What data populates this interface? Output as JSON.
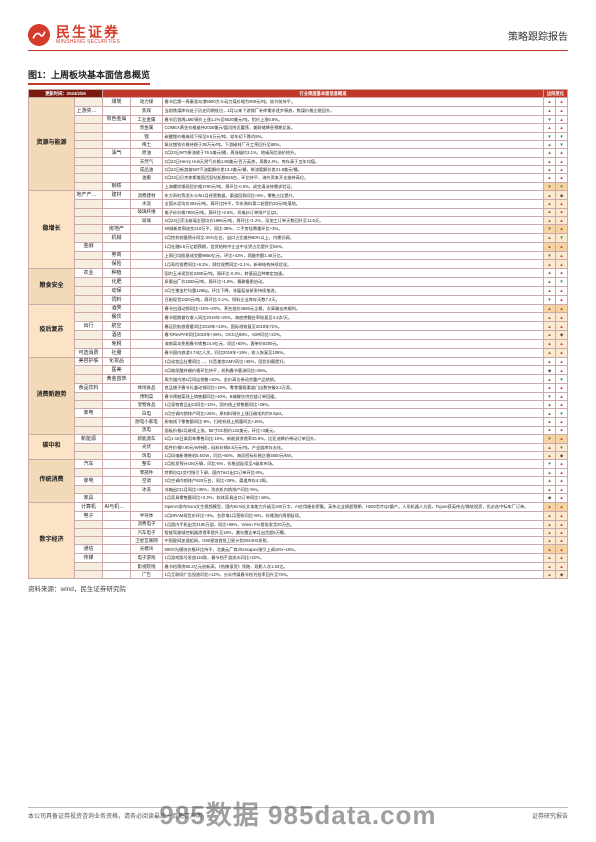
{
  "header": {
    "brand_cn": "民生证券",
    "brand_en": "MINSHENG SECURITIES",
    "report_type": "策略跟踪报告"
  },
  "figure": {
    "title": "图1：上周板块基本面信息概览",
    "update_label": "更新时间：2024/2/25",
    "col_header_mid": "行业周度基本面信息概览",
    "col_header_right": "边际变化"
  },
  "arrows": {
    "up": "▲",
    "down": "▼",
    "flat": "◆"
  },
  "colors": {
    "brand_red": "#d43b2a",
    "header_dark": "#7a1a10",
    "cat_bg": "#f2d9b8",
    "hl_bg": "#fce3c5",
    "grid": "#caa"
  },
  "categories": [
    {
      "name": "资源与能源",
      "highlight": false,
      "groups": [
        {
          "sub1": "",
          "sub2": "煤炭",
          "metric": "动力煤",
          "desc": "春节后第一周秦皇岛港5500大卡动力煤价格为900元/吨，较节前持平。",
          "ind": [
            "up",
            "up"
          ]
        },
        {
          "sub1": "上游资源品",
          "sub2": "",
          "metric": "焦煤",
          "desc": "当前焦煤库存处于历史同期低位，2月以来下游钢厂补库需求逐步释放，焦煤价格企稳回升。",
          "ind": [
            "up",
            "up"
          ]
        },
        {
          "sub1": "",
          "sub2": "有色金属",
          "metric": "工业金属",
          "desc": "春节后首周LME铜价上涨1.2%至8520美元/吨，铝价上涨0.8%。",
          "ind": [
            "down",
            "up"
          ],
          "num": "94"
        },
        {
          "sub1": "",
          "sub2": "",
          "metric": "贵金属",
          "desc": "COMEX黄金价格维持2030美元/盎司附近震荡，美联储降息预期反复。",
          "ind": [
            "up",
            "up"
          ],
          "num": "95"
        },
        {
          "sub1": "",
          "sub2": "",
          "metric": "锂",
          "desc": "碳酸锂价格继续下探至9.6万元/吨，较年初下跌约8%。",
          "ind": [
            "down",
            "down"
          ],
          "num": "锂"
        },
        {
          "sub1": "",
          "sub2": "",
          "metric": "稀土",
          "desc": "氧化镨钕价格持稳于38万元/吨，下游磁材厂开工率回升至65%。",
          "ind": [
            "up",
            "down"
          ],
          "num": "稀土"
        },
        {
          "sub1": "",
          "sub2": "油气",
          "metric": "原油",
          "desc": "2月23日WTI原油收于76.5美元/桶，周涨幅约3.1%，地缘风险溢价抬升。",
          "ind": [
            "up",
            "up"
          ]
        },
        {
          "sub1": "",
          "sub2": "",
          "metric": "天然气",
          "desc": "2月23日Henry Hub天然气价格1.60美元/百万英热，周跌2.4%，库存高于五年均值。",
          "ind": [
            "up",
            "up"
          ]
        },
        {
          "sub1": "",
          "sub2": "",
          "metric": "成品油",
          "desc": "2月23日新加坡92#汽油裂解价差13.2美元/桶，柴油裂解价差21.8美元/桶。",
          "ind": [
            "up",
            "up"
          ]
        },
        {
          "sub1": "",
          "sub2": "",
          "metric": "油服",
          "desc": "2月23日贝克休斯美国活跃钻机数626台，环比持平，海外资本开支维持高位。",
          "ind": [
            "up",
            "up"
          ]
        },
        {
          "sub1": "",
          "sub2": "钢铁",
          "metric": "",
          "desc": "上海螺纹钢现货价格3780元/吨，周环比-0.5%，成交清淡待需求验证。",
          "ind": [
            "down",
            "down"
          ],
          "hl": true
        }
      ]
    },
    {
      "name": "稳增长",
      "highlight": true,
      "groups": [
        {
          "sub1": "地产产业链",
          "sub2": "建材",
          "metric": "消费建材",
          "desc": "东方雨虹等龙头公布1月经营数据，渠道回款同比+5%，零售占比提升。",
          "ind": [
            "up",
            "flat"
          ]
        },
        {
          "sub1": "",
          "sub2": "",
          "metric": "水泥",
          "desc": "全国水泥均价383元/吨，周环比持平，华东熟料第二轮提价20元/吨落地。",
          "ind": [
            "up",
            "up"
          ]
        },
        {
          "sub1": "",
          "sub2": "",
          "metric": "玻璃纤维",
          "desc": "电子纱价格7800元/吨，周环比+2.6%，风电纱订单排产至Q2。",
          "ind": [
            "up",
            "up"
          ]
        },
        {
          "sub1": "",
          "sub2": "",
          "metric": "玻璃",
          "desc": "2月23日浮法玻璃全国均价1986元/吨，周环比+1.2%，深加工订单天数回升至11.5天。",
          "ind": [
            "up",
            "up"
          ]
        },
        {
          "sub1": "",
          "sub2": "房地产",
          "metric": "",
          "desc": "50城新房周成交210万平，同比-38%，二手房挂牌量环比+3%。",
          "ind": [
            "down",
            "up"
          ],
          "hl": true
        },
        {
          "sub1": "",
          "sub2": "机械",
          "metric": "",
          "desc": "2月挖机销量预计同比-25%左右，出口占比维持60%以上，内需仍弱。",
          "ind": [
            "up",
            "down"
          ]
        },
        {
          "sub1": "金融",
          "sub2": "",
          "metric": "",
          "desc": "1月社融6.5万亿超预期，信贷结构中企业中长贷占比提升至55%。",
          "ind": [
            "up",
            "up"
          ],
          "hl": true
        },
        {
          "sub1": "",
          "sub2": "券商",
          "metric": "",
          "desc": "上周日均股基成交额9850亿元，环比+42%，两融余额1.48万亿。",
          "ind": [
            "down",
            "up"
          ]
        },
        {
          "sub1": "",
          "sub2": "保险",
          "metric": "",
          "desc": "1月寿险保费同比+8.2%，财险保费同比+2.1%，新单结构持续优化。",
          "ind": [
            "up",
            "up"
          ]
        }
      ]
    },
    {
      "name": "粮食安全",
      "highlight": false,
      "groups": [
        {
          "sub1": "农业",
          "sub2": "种植",
          "metric": "",
          "desc": "国内玉米现货价2380元/吨，周环比-0.4%，转基因品种审定加速。",
          "ind": [
            "up",
            "up"
          ]
        },
        {
          "sub1": "",
          "sub2": "化肥",
          "metric": "",
          "desc": "尿素出厂价2280元/吨，周环比+1.8%，春耕备肥启动。",
          "ind": [
            "up",
            "down"
          ]
        },
        {
          "sub1": "",
          "sub2": "动保",
          "metric": "",
          "desc": "2月生猪出栏均重125kg，环比下降，非瘟疫苗研发持续推进。",
          "ind": [
            "up",
            "up"
          ]
        },
        {
          "sub1": "",
          "sub2": "饲料",
          "metric": "",
          "desc": "豆粕现货3420元/吨，周环比-2.1%，饲料企业库存天数7.2天。",
          "ind": [
            "down",
            "up"
          ]
        }
      ]
    },
    {
      "name": "疫后复苏",
      "highlight": true,
      "groups": [
        {
          "sub1": "",
          "sub2": "酒类",
          "metric": "",
          "desc": "春节白酒动销同比+15%~20%，茅台批价2680元企稳，次高端去库顺利。",
          "ind": [
            "up",
            "up"
          ],
          "hl": true
        },
        {
          "sub1": "",
          "sub2": "餐饮",
          "metric": "",
          "desc": "春节假期餐饮收入同比2019年+20%，海底捞翻台率恢复至4.2次/天。",
          "ind": [
            "up",
            "up"
          ]
        },
        {
          "sub1": "出行",
          "sub2": "航空",
          "metric": "",
          "desc": "春运民航旅客量同比2019年+15%，国际线恢复至2019年72%。",
          "ind": [
            "up",
            "up"
          ]
        },
        {
          "sub1": "",
          "sub2": "酒店",
          "metric": "",
          "desc": "春节RevPAR同比2019年+28%，OCC达68%，ADR同比+22%。",
          "ind": [
            "up",
            "flat"
          ]
        },
        {
          "sub1": "",
          "sub2": "免税",
          "metric": "",
          "desc": "海南离岛免税春节销售24.9亿元，同比+60%，客单价8200元。",
          "ind": [
            "up",
            "up"
          ]
        },
        {
          "sub1": "可选消费",
          "sub2": "社服",
          "metric": "",
          "desc": "春节国内旅游4.74亿人次，同比2019年+19%，收入恢复至108%。",
          "ind": [
            "up",
            "up"
          ]
        }
      ]
    },
    {
      "name": "消费新趋势",
      "highlight": false,
      "groups": [
        {
          "sub1": "美容护肤",
          "sub2": "化妆品",
          "metric": "",
          "desc": "1月化妆品社零同比…，抖音美妆GMV同比+35%，国货份额提升。",
          "ind": [
            "up",
            "up"
          ]
        },
        {
          "sub1": "",
          "sub2": "医美",
          "metric": "",
          "desc": "2月玻尿酸终端价格环比持平，机构春节客流同比+25%。",
          "ind": [
            "flat",
            "up"
          ]
        },
        {
          "sub1": "",
          "sub2": "黄金首饰",
          "metric": "",
          "desc": "周大福内地1月同店销售+20%，金价高位带动克重产品热销。",
          "ind": [
            "up",
            "down"
          ]
        },
        {
          "sub1": "食品饮料",
          "sub2": "",
          "metric": "休闲食品",
          "desc": "良品铺子春节礼盒动销同比+18%，零食量贩渠道门店数突破2.2万家。",
          "ind": [
            "up",
            "up"
          ]
        },
        {
          "sub1": "",
          "sub2": "",
          "metric": "预制菜",
          "desc": "春节预制菜线上销售额同比+40%，B端餐饮供应链订单回暖。",
          "ind": [
            "down",
            "up"
          ]
        },
        {
          "sub1": "",
          "sub2": "",
          "metric": "宠物食品",
          "desc": "1月宠物食品出口同比+12%，国内线上销售额同比+28%。",
          "ind": [
            "up",
            "up"
          ]
        },
        {
          "sub1": "家电",
          "sub2": "",
          "metric": "白电",
          "desc": "2月空调内销排产同比+25%，原材料铜价上涨压缩毛利约0.5pct。",
          "ind": [
            "up",
            "down"
          ]
        },
        {
          "sub1": "",
          "sub2": "",
          "metric": "厨电小家电",
          "desc": "厨电线下零售额同比-8%，扫地机线上销量同比+15%。",
          "ind": [
            "up",
            "up"
          ]
        },
        {
          "sub1": "",
          "sub2": "",
          "metric": "黑电",
          "desc": "面板价格2月继续上涨，55寸OC报价132美元，环比+3美元。",
          "ind": [
            "up",
            "up"
          ]
        }
      ]
    },
    {
      "name": "碳中和",
      "highlight": true,
      "groups": [
        {
          "sub1": "新能源",
          "sub2": "",
          "metric": "新能源车",
          "desc": "2月1-18日乘用车零售同比-15%，新能源渗透率35.8%，比亚迪降价带动订单回升。",
          "ind": [
            "down",
            "up"
          ],
          "hl": true
        },
        {
          "sub1": "",
          "sub2": "",
          "metric": "光伏",
          "desc": "组件价格0.90元/W持稳，硅料价格6.8万元/吨，产业链库存去化。",
          "ind": [
            "up",
            "down"
          ]
        },
        {
          "sub1": "",
          "sub2": "",
          "metric": "风电",
          "desc": "1月风电新增装机5.5GW，同比+60%，海风招标价格企稳3500元/kW。",
          "ind": [
            "up",
            "flat"
          ]
        }
      ]
    },
    {
      "name": "传统消费",
      "highlight": false,
      "groups": [
        {
          "sub1": "汽车",
          "sub2": "",
          "metric": "整车",
          "desc": "2月批发预计150万辆，同比-5%，价格战延续至A级车市场。",
          "ind": [
            "down",
            "up"
          ]
        },
        {
          "sub1": "",
          "sub2": "",
          "metric": "零部件",
          "desc": "特斯拉Q1交付指引下调，国内Tier1出口订单环比-8%。",
          "ind": [
            "up",
            "up"
          ]
        },
        {
          "sub1": "家电",
          "sub2": "",
          "metric": "空调",
          "desc": "2月空调内销排产920万台，同比+28%，渠道库存4.2周。",
          "ind": [
            "up",
            "up"
          ]
        },
        {
          "sub1": "",
          "sub2": "",
          "metric": "冰洗",
          "desc": "冰箱出口1月同比+35%，洗衣机内销排产同比+5%。",
          "ind": [
            "up",
            "up"
          ]
        },
        {
          "sub1": "家具",
          "sub2": "",
          "metric": "",
          "desc": "1月家具零售额同比+2.3%，软体家具出口订单同比+18%。",
          "ind": [
            "flat",
            "up"
          ]
        }
      ]
    },
    {
      "name": "数字经济",
      "highlight": true,
      "groups": [
        {
          "sub1": "计算机",
          "sub2": "AI与机器人",
          "metric": "",
          "desc": "OpenAI发布Sora文生视频模型，国内Kimi长文本能力升级至200万字，AI应用催化密集。英伟达业绩超预期，H200芯片Q2量产。人形机器人方面，Figure获英伟达/微软投资，优必选中标车厂订单。",
          "ind": [
            "up",
            "up"
          ],
          "hl": true,
          "tall": true
        },
        {
          "sub1": "电子",
          "sub2": "",
          "metric": "半导体",
          "desc": "2月DRAM现货价环比+3%，台积电1月营收同比+8%，存储涨价周期延续。",
          "ind": [
            "up",
            "up"
          ]
        },
        {
          "sub1": "",
          "sub2": "",
          "metric": "消费电子",
          "desc": "1月国内手机出货3180万部，同比+69%，Vision Pro首批发货20万台。",
          "ind": [
            "up",
            "up"
          ]
        },
        {
          "sub1": "",
          "sub2": "",
          "metric": "汽车电子",
          "desc": "智能驾驶域控制器渗透率提升至18%，激光雷达单月出货超5万颗。",
          "ind": [
            "up",
            "up"
          ]
        },
        {
          "sub1": "",
          "sub2": "",
          "metric": "卫星互联网",
          "desc": "中国星网加速组网，G60星链首批卫星计划2024H2发射。",
          "ind": [
            "up",
            "up"
          ]
        },
        {
          "sub1": "通信",
          "sub2": "",
          "metric": "光模块",
          "desc": "800G光模块价格环比持平，北美云厂商2024capex指引上调10%~15%。",
          "ind": [
            "up",
            "up"
          ],
          "hl": true
        },
        {
          "sub1": "传媒",
          "sub2": "",
          "metric": "电子游戏",
          "desc": "1月游戏版号发放115款，春节档手游流水同比+22%。",
          "ind": [
            "up",
            "up"
          ]
        },
        {
          "sub1": "",
          "sub2": "",
          "metric": "影视院线",
          "desc": "春节档票房80.2亿元创新高，《热辣滚烫》领跑，观影人次1.63亿。",
          "ind": [
            "up",
            "up"
          ]
        },
        {
          "sub1": "",
          "sub2": "",
          "metric": "广告",
          "desc": "1月互联网广告投放同比+12%，分众传媒春节档刊挂率回升至75%。",
          "ind": [
            "up",
            "flat"
          ]
        }
      ]
    }
  ],
  "source": "资料来源：wind，民生证券研究院",
  "footer": {
    "left": "本公司具备证券投资咨询业务资格，请务必阅读最后一页免责声明",
    "right": "证券研究报告"
  },
  "watermark": "985数据 985data.com"
}
